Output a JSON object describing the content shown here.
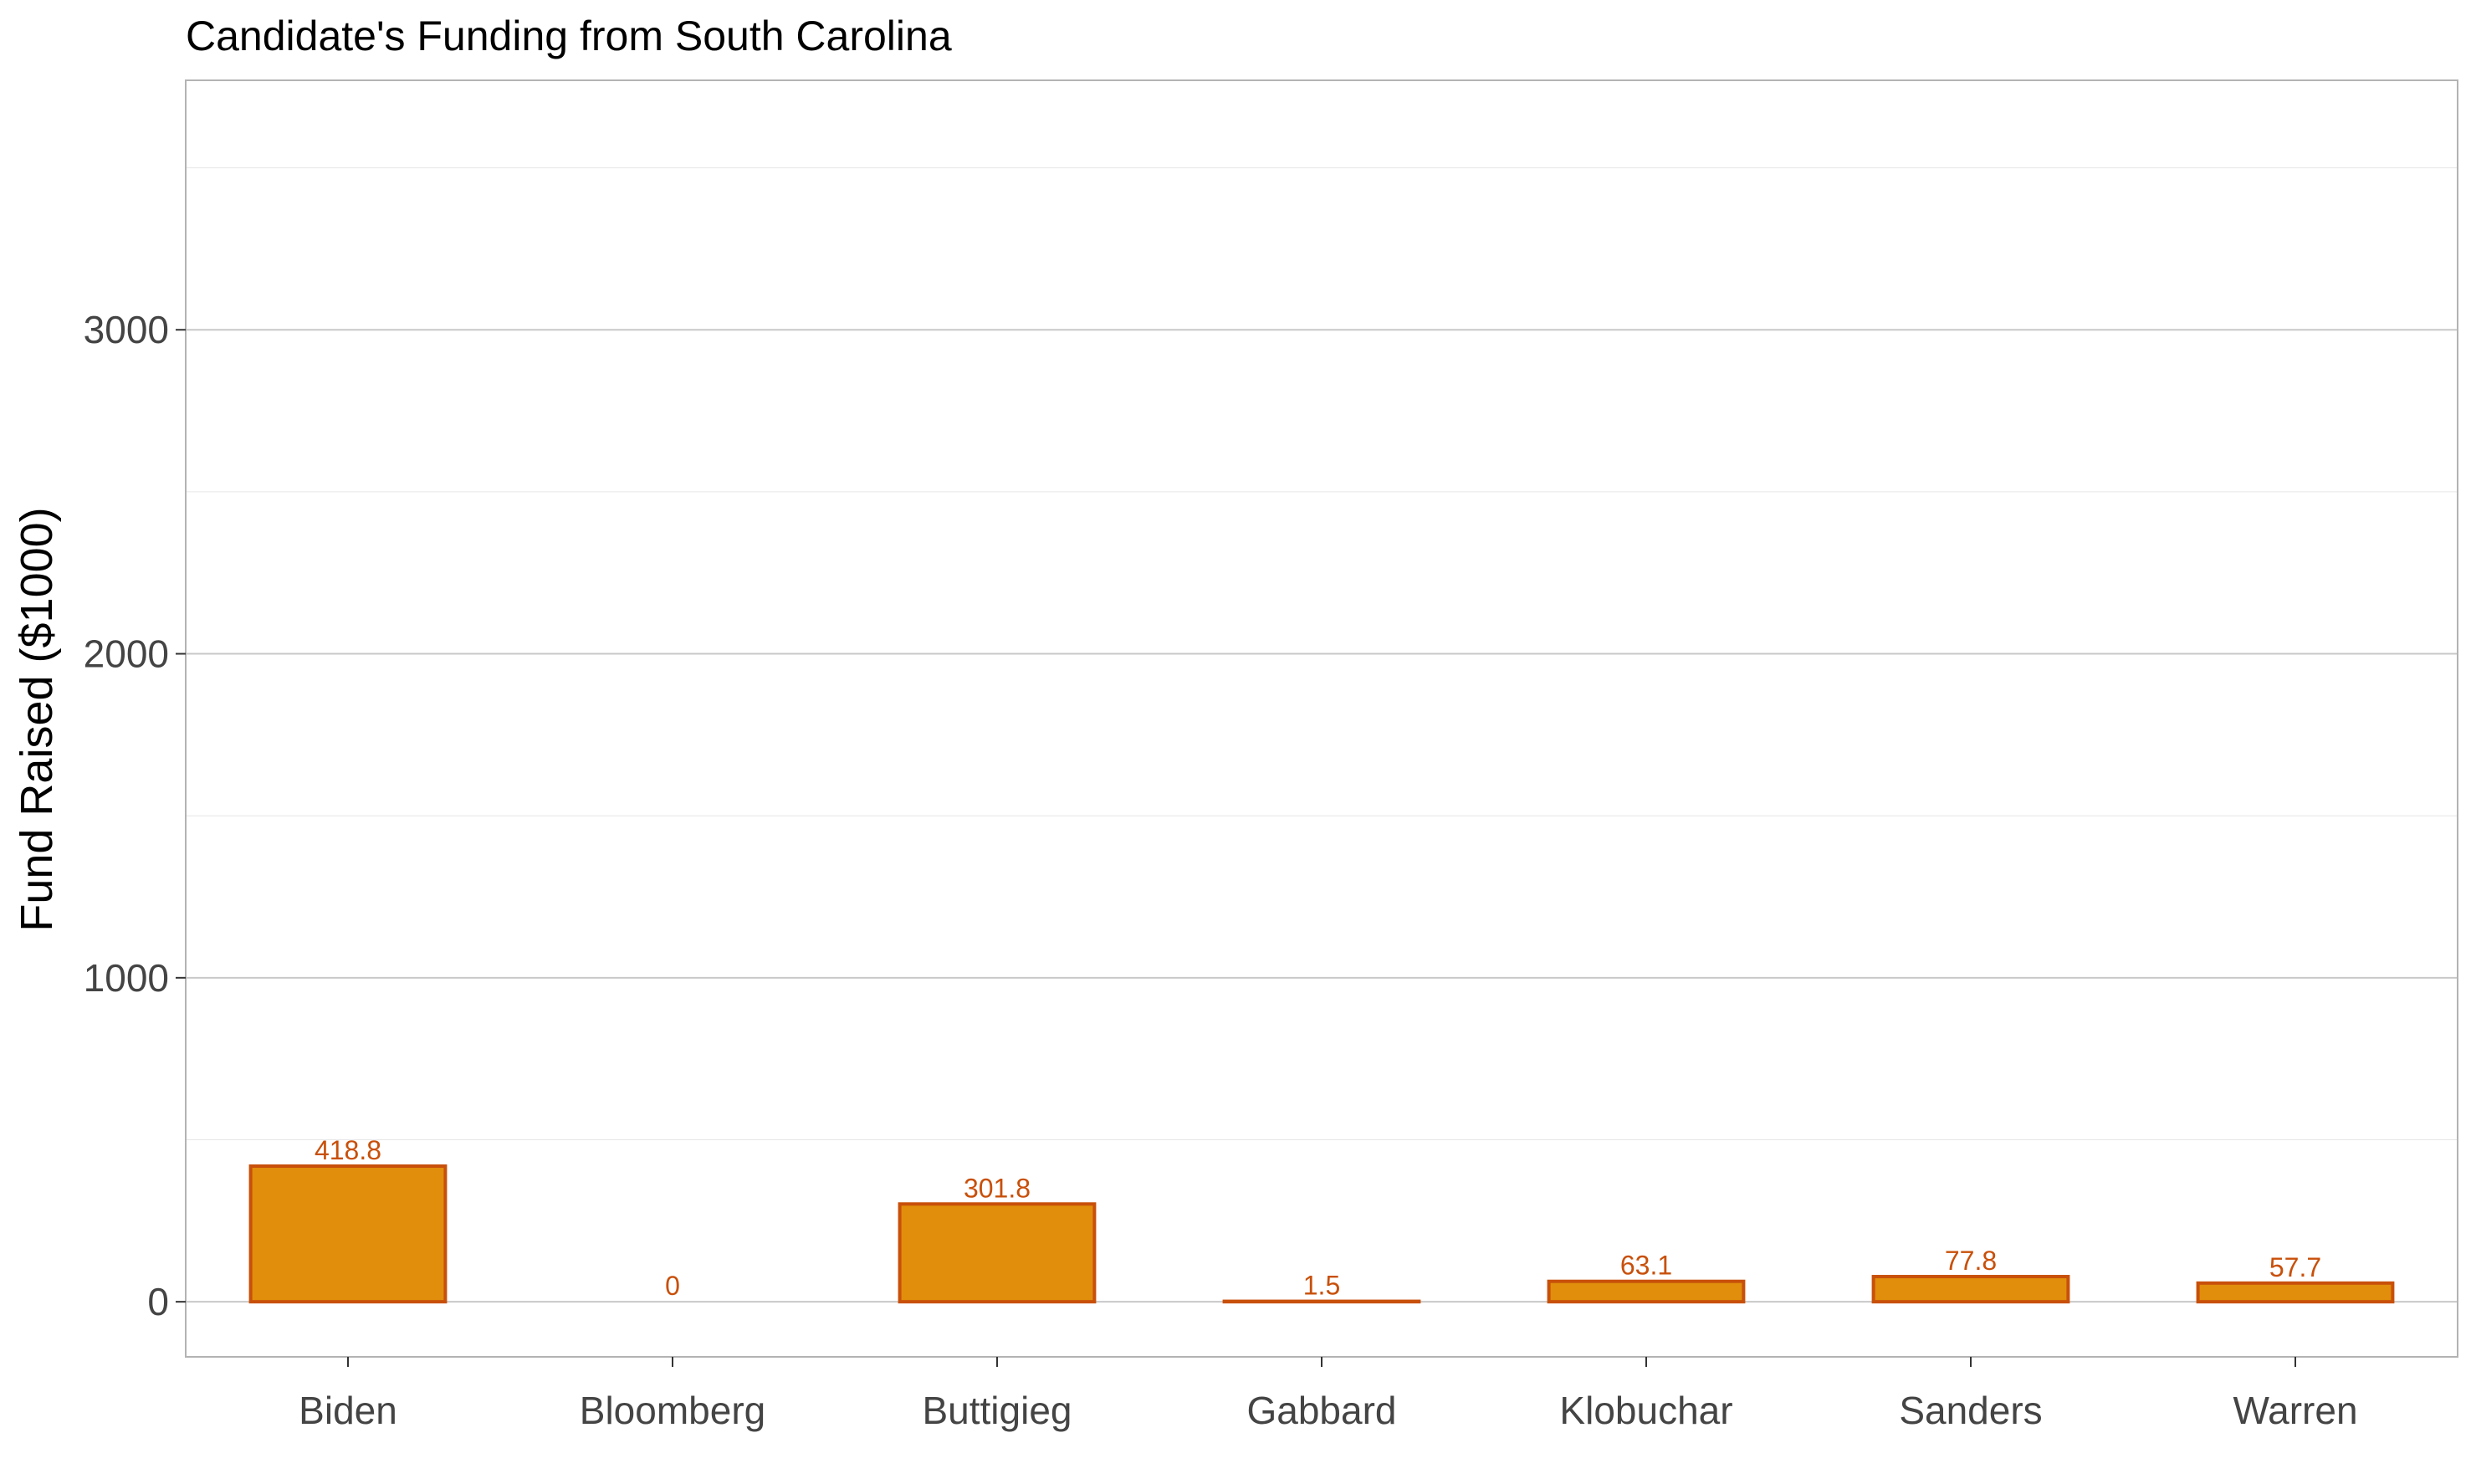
{
  "chart_data": {
    "type": "bar",
    "title": "Candidate's Funding from South Carolina",
    "xlabel": "",
    "ylabel": "Fund Raised ($1000)",
    "categories": [
      "Biden",
      "Bloomberg",
      "Buttigieg",
      "Gabbard",
      "Klobuchar",
      "Sanders",
      "Warren"
    ],
    "values": [
      418.8,
      0,
      301.8,
      1.5,
      63.1,
      77.8,
      57.7
    ],
    "data_labels": [
      "418.8",
      "0",
      "301.8",
      "1.5",
      "63.1",
      "77.8",
      "57.7"
    ],
    "yticks": [
      0,
      1000,
      2000,
      3000
    ],
    "ytick_labels": [
      "0",
      "1000",
      "2000",
      "3000"
    ],
    "ylim": [
      -170,
      3770
    ],
    "grid": true,
    "legend": "none",
    "colors": {
      "bar_fill": "#E08E0B",
      "bar_stroke": "#C8500A",
      "label_text": "#C8500A",
      "panel_border": "#b3b3b3",
      "grid_major": "#c8c8c8",
      "grid_minor": "#e6e6e6"
    }
  }
}
